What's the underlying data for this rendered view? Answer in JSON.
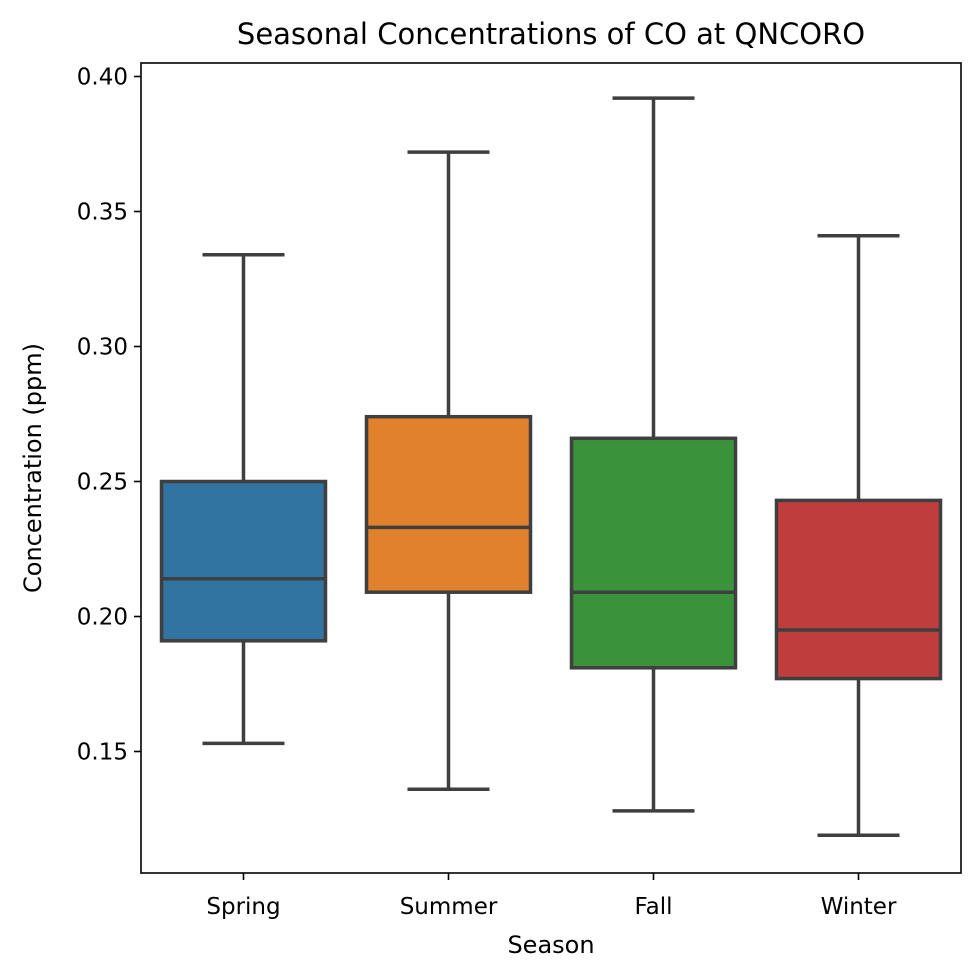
{
  "chart_data": {
    "type": "box",
    "title": "Seasonal Concentrations of CO at QNCORO",
    "xlabel": "Season",
    "ylabel": "Concentration (ppm)",
    "ylim": [
      0.105,
      0.405
    ],
    "yticks": [
      0.15,
      0.2,
      0.25,
      0.3,
      0.35,
      0.4
    ],
    "ytick_labels": [
      "0.15",
      "0.20",
      "0.25",
      "0.30",
      "0.35",
      "0.40"
    ],
    "grid": false,
    "categories": [
      "Spring",
      "Summer",
      "Fall",
      "Winter"
    ],
    "boxes": [
      {
        "category": "Spring",
        "whisker_low": 0.153,
        "q1": 0.191,
        "median": 0.214,
        "q3": 0.25,
        "whisker_high": 0.334,
        "color": "#3274a1"
      },
      {
        "category": "Summer",
        "whisker_low": 0.136,
        "q1": 0.209,
        "median": 0.233,
        "q3": 0.274,
        "whisker_high": 0.372,
        "color": "#e1812c"
      },
      {
        "category": "Fall",
        "whisker_low": 0.128,
        "q1": 0.181,
        "median": 0.209,
        "q3": 0.266,
        "whisker_high": 0.392,
        "color": "#3a923a"
      },
      {
        "category": "Winter",
        "whisker_low": 0.119,
        "q1": 0.177,
        "median": 0.195,
        "q3": 0.243,
        "whisker_high": 0.341,
        "color": "#c03d3e"
      }
    ]
  }
}
